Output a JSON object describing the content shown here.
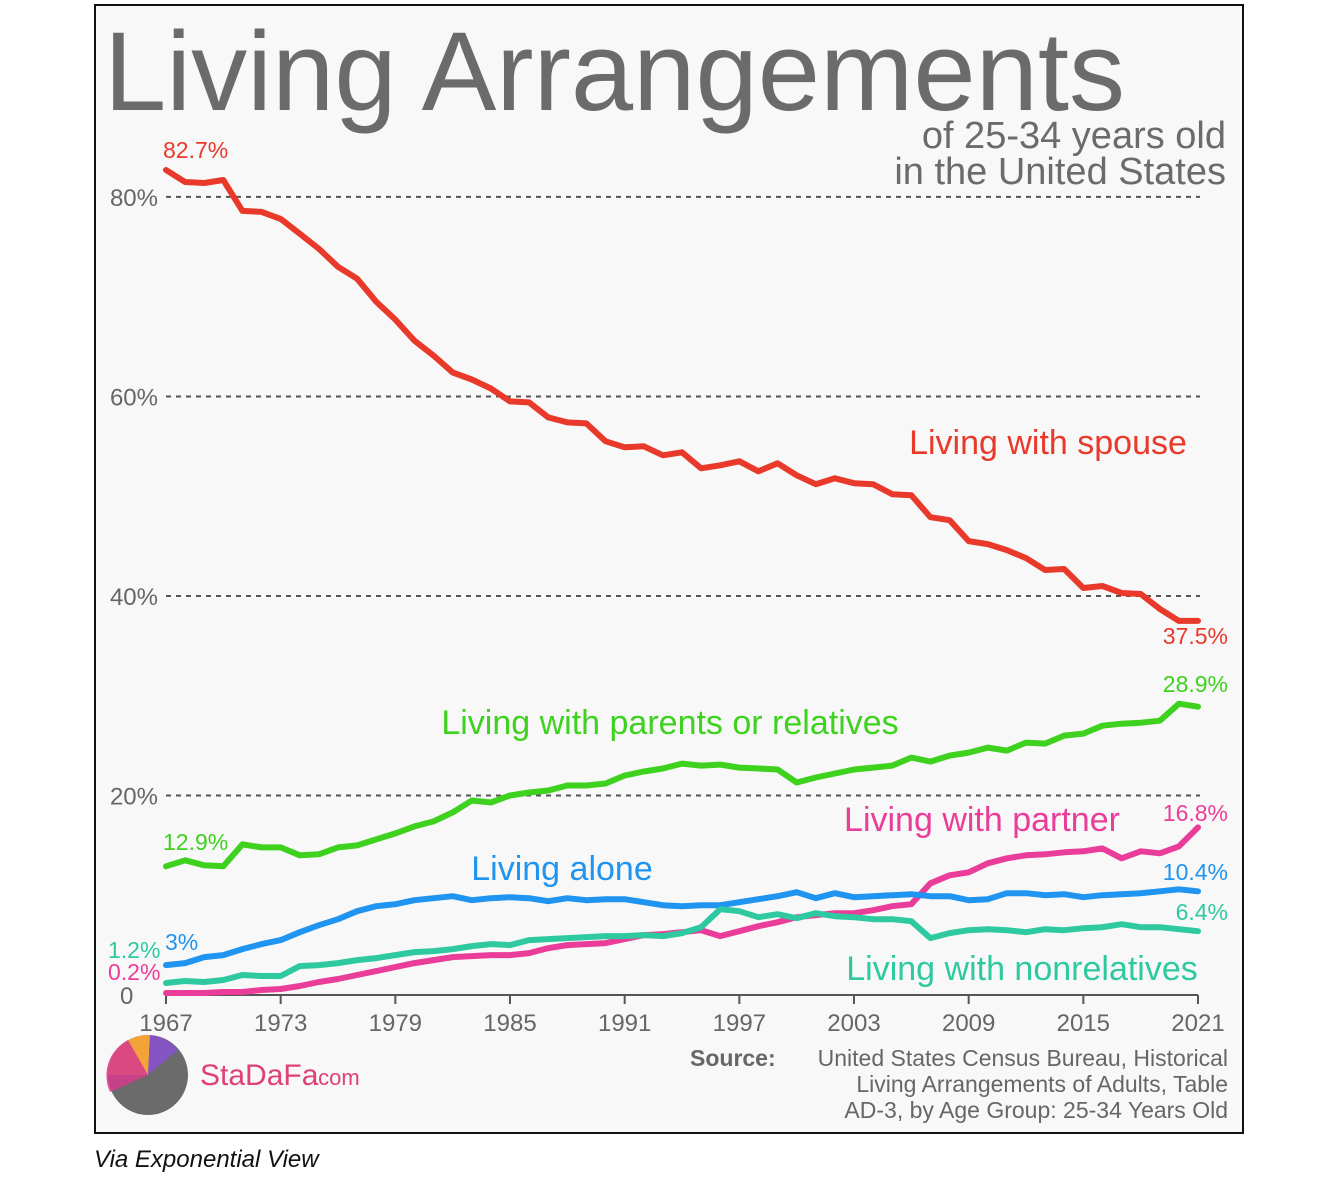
{
  "chart_data": {
    "type": "line",
    "title": "Living Arrangements",
    "subtitle_line1": "of 25-34 years old",
    "subtitle_line2": "in the United States",
    "xlim": [
      1967,
      2021
    ],
    "ylim": [
      0,
      82.7
    ],
    "x_ticks": [
      "1967",
      "1973",
      "1979",
      "1985",
      "1991",
      "1997",
      "2003",
      "2009",
      "2015",
      "2021"
    ],
    "y_ticks": [
      {
        "value": 0,
        "label": "0"
      },
      {
        "value": 20,
        "label": "20%"
      },
      {
        "value": 40,
        "label": "40%"
      },
      {
        "value": 60,
        "label": "60%"
      },
      {
        "value": 80,
        "label": "80%"
      }
    ],
    "grid": "horizontal dashed",
    "series": [
      {
        "name": "Living with spouse",
        "color": "#e8392a",
        "start_label": "82.7%",
        "end_label": "37.5%",
        "x": [
          1967,
          1968,
          1969,
          1970,
          1971,
          1972,
          1973,
          1974,
          1975,
          1976,
          1977,
          1978,
          1979,
          1980,
          1981,
          1982,
          1983,
          1984,
          1985,
          1986,
          1987,
          1988,
          1989,
          1990,
          1991,
          1992,
          1993,
          1994,
          1995,
          1996,
          1997,
          1998,
          1999,
          2000,
          2001,
          2002,
          2003,
          2004,
          2005,
          2006,
          2007,
          2008,
          2009,
          2010,
          2011,
          2012,
          2013,
          2014,
          2015,
          2016,
          2017,
          2018,
          2019,
          2020,
          2021
        ],
        "values": [
          82.7,
          81.5,
          81.4,
          81.7,
          78.6,
          78.5,
          77.8,
          76.3,
          74.8,
          73.0,
          71.8,
          69.5,
          67.7,
          65.6,
          64.1,
          62.4,
          61.7,
          60.8,
          59.5,
          59.4,
          57.9,
          57.4,
          57.3,
          55.5,
          54.9,
          55.0,
          54.1,
          54.4,
          52.8,
          53.1,
          53.5,
          52.5,
          53.3,
          52.1,
          51.2,
          51.8,
          51.3,
          51.2,
          50.2,
          50.1,
          47.9,
          47.6,
          45.5,
          45.2,
          44.6,
          43.8,
          42.6,
          42.7,
          40.8,
          41.0,
          40.3,
          40.2,
          38.7,
          37.5,
          37.5
        ]
      },
      {
        "name": "Living with parents or relatives",
        "color": "#3ed11e",
        "start_label": "12.9%",
        "end_label": "28.9%",
        "x": [
          1967,
          1968,
          1969,
          1970,
          1971,
          1972,
          1973,
          1974,
          1975,
          1976,
          1977,
          1978,
          1979,
          1980,
          1981,
          1982,
          1983,
          1984,
          1985,
          1986,
          1987,
          1988,
          1989,
          1990,
          1991,
          1992,
          1993,
          1994,
          1995,
          1996,
          1997,
          1998,
          1999,
          2000,
          2001,
          2002,
          2003,
          2004,
          2005,
          2006,
          2007,
          2008,
          2009,
          2010,
          2011,
          2012,
          2013,
          2014,
          2015,
          2016,
          2017,
          2018,
          2019,
          2020,
          2021
        ],
        "values": [
          12.9,
          13.5,
          13.0,
          12.9,
          15.1,
          14.8,
          14.8,
          14.0,
          14.1,
          14.8,
          15.0,
          15.6,
          16.2,
          16.9,
          17.4,
          18.3,
          19.5,
          19.3,
          20.0,
          20.3,
          20.5,
          21.0,
          21.0,
          21.2,
          22.0,
          22.4,
          22.7,
          23.2,
          23.0,
          23.1,
          22.8,
          22.7,
          22.6,
          21.3,
          21.8,
          22.2,
          22.6,
          22.8,
          23.0,
          23.8,
          23.4,
          24.0,
          24.3,
          24.8,
          24.5,
          25.3,
          25.2,
          26.0,
          26.2,
          27.0,
          27.2,
          27.3,
          27.5,
          29.2,
          28.9
        ]
      },
      {
        "name": "Living with partner",
        "color": "#ea3d9a",
        "start_label": "0.2%",
        "end_label": "16.8%",
        "x": [
          1967,
          1968,
          1969,
          1970,
          1971,
          1972,
          1973,
          1974,
          1975,
          1976,
          1977,
          1978,
          1979,
          1980,
          1981,
          1982,
          1983,
          1984,
          1985,
          1986,
          1987,
          1988,
          1989,
          1990,
          1991,
          1992,
          1993,
          1994,
          1995,
          1996,
          1997,
          1998,
          1999,
          2000,
          2001,
          2002,
          2003,
          2004,
          2005,
          2006,
          2007,
          2008,
          2009,
          2010,
          2011,
          2012,
          2013,
          2014,
          2015,
          2016,
          2017,
          2018,
          2019,
          2020,
          2021
        ],
        "values": [
          0.2,
          0.2,
          0.2,
          0.3,
          0.3,
          0.5,
          0.6,
          0.9,
          1.3,
          1.6,
          2.0,
          2.4,
          2.8,
          3.2,
          3.5,
          3.8,
          3.9,
          4.0,
          4.0,
          4.2,
          4.7,
          5.0,
          5.1,
          5.2,
          5.6,
          6.0,
          6.1,
          6.3,
          6.5,
          5.9,
          6.4,
          6.9,
          7.3,
          7.8,
          8.0,
          8.2,
          8.2,
          8.5,
          8.9,
          9.1,
          11.2,
          12.0,
          12.3,
          13.2,
          13.7,
          14.0,
          14.1,
          14.3,
          14.4,
          14.7,
          13.7,
          14.4,
          14.2,
          14.9,
          16.8
        ]
      },
      {
        "name": "Living alone",
        "color": "#1f94f0",
        "start_label": "3%",
        "end_label": "10.4%",
        "x": [
          1967,
          1968,
          1969,
          1970,
          1971,
          1972,
          1973,
          1974,
          1975,
          1976,
          1977,
          1978,
          1979,
          1980,
          1981,
          1982,
          1983,
          1984,
          1985,
          1986,
          1987,
          1988,
          1989,
          1990,
          1991,
          1992,
          1993,
          1994,
          1995,
          1996,
          1997,
          1998,
          1999,
          2000,
          2001,
          2002,
          2003,
          2004,
          2005,
          2006,
          2007,
          2008,
          2009,
          2010,
          2011,
          2012,
          2013,
          2014,
          2015,
          2016,
          2017,
          2018,
          2019,
          2020,
          2021
        ],
        "values": [
          3.0,
          3.2,
          3.8,
          4.0,
          4.6,
          5.1,
          5.5,
          6.3,
          7.0,
          7.6,
          8.4,
          8.9,
          9.1,
          9.5,
          9.7,
          9.9,
          9.5,
          9.7,
          9.8,
          9.7,
          9.4,
          9.7,
          9.5,
          9.6,
          9.6,
          9.3,
          9.0,
          8.9,
          9.0,
          9.0,
          9.3,
          9.6,
          9.9,
          10.3,
          9.7,
          10.2,
          9.8,
          9.9,
          10.0,
          10.1,
          9.9,
          9.9,
          9.5,
          9.6,
          10.2,
          10.2,
          10.0,
          10.1,
          9.8,
          10.0,
          10.1,
          10.2,
          10.4,
          10.6,
          10.4
        ]
      },
      {
        "name": "Living with nonrelatives",
        "color": "#2ec9a0",
        "start_label": "1.2%",
        "end_label": "6.4%",
        "x": [
          1967,
          1968,
          1969,
          1970,
          1971,
          1972,
          1973,
          1974,
          1975,
          1976,
          1977,
          1978,
          1979,
          1980,
          1981,
          1982,
          1983,
          1984,
          1985,
          1986,
          1987,
          1988,
          1989,
          1990,
          1991,
          1992,
          1993,
          1994,
          1995,
          1996,
          1997,
          1998,
          1999,
          2000,
          2001,
          2002,
          2003,
          2004,
          2005,
          2006,
          2007,
          2008,
          2009,
          2010,
          2011,
          2012,
          2013,
          2014,
          2015,
          2016,
          2017,
          2018,
          2019,
          2020,
          2021
        ],
        "values": [
          1.2,
          1.4,
          1.3,
          1.5,
          2.0,
          1.9,
          1.9,
          2.9,
          3.0,
          3.2,
          3.5,
          3.7,
          4.0,
          4.3,
          4.4,
          4.6,
          4.9,
          5.1,
          5.0,
          5.5,
          5.6,
          5.7,
          5.8,
          5.9,
          5.9,
          6.0,
          5.9,
          6.2,
          6.8,
          8.6,
          8.4,
          7.8,
          8.1,
          7.7,
          8.2,
          7.9,
          7.8,
          7.6,
          7.6,
          7.4,
          5.7,
          6.2,
          6.5,
          6.6,
          6.5,
          6.3,
          6.6,
          6.5,
          6.7,
          6.8,
          7.1,
          6.8,
          6.8,
          6.6,
          6.4
        ]
      }
    ]
  },
  "brand": {
    "name": "StaDaFa",
    "suffix": ".com"
  },
  "source": {
    "bold": "Source:",
    "line1": "United States Census Bureau, Historical",
    "line2": "Living Arrangements of Adults, Table",
    "line3": "AD-3, by Age Group: 25-34 Years Old"
  },
  "caption": "Via Exponential View"
}
